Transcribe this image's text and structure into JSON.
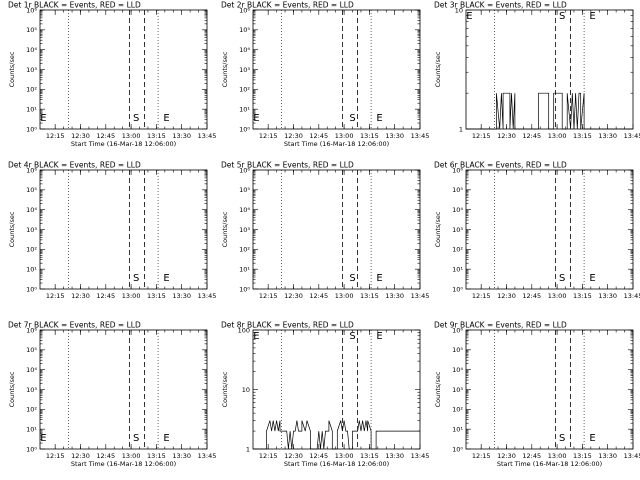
{
  "chart_data": [
    {
      "type": "line",
      "title": "Det 1r BLACK = Events, RED = LLD",
      "xlabel": "Start Time (16-Mar-18 12:06:00)",
      "ylabel": "Counts/sec",
      "yscale": "log",
      "ylim": [
        1,
        1000000
      ],
      "yticks": [
        1,
        10,
        100,
        1000,
        10000,
        100000,
        1000000
      ],
      "yticklabels": [
        "10⁰",
        "10¹",
        "10²",
        "10³",
        "10⁴",
        "10⁵",
        "10⁶"
      ],
      "xticklabels": [
        "12:15",
        "12:30",
        "12:45",
        "13:00",
        "13:15",
        "13:30",
        "13:45"
      ],
      "markers": [
        {
          "label": "E",
          "time": "12:08"
        },
        {
          "label": "S",
          "time": "13:03"
        },
        {
          "label": "E",
          "time": "13:21"
        }
      ],
      "series": []
    },
    {
      "type": "line",
      "title": "Det 2r BLACK = Events, RED = LLD",
      "xlabel": "Start Time (16-Mar-18 12:06:00)",
      "ylabel": "Counts/sec",
      "yscale": "log",
      "ylim": [
        1,
        1000000
      ],
      "yticks": [
        1,
        10,
        100,
        1000,
        10000,
        100000,
        1000000
      ],
      "yticklabels": [
        "10⁰",
        "10¹",
        "10²",
        "10³",
        "10⁴",
        "10⁵",
        "10⁶"
      ],
      "xticklabels": [
        "12:15",
        "12:30",
        "12:45",
        "13:00",
        "13:15",
        "13:30",
        "13:45"
      ],
      "markers": [
        {
          "label": "E",
          "time": "12:08"
        },
        {
          "label": "S",
          "time": "13:05"
        },
        {
          "label": "E",
          "time": "13:21"
        }
      ],
      "series": []
    },
    {
      "type": "line",
      "title": "Det 3r BLACK = Events, RED = LLD",
      "xlabel": "",
      "ylabel": "Counts/sec",
      "yscale": "log",
      "ylim": [
        1,
        10
      ],
      "yticks": [
        1,
        10
      ],
      "yticklabels": [
        "1",
        "10"
      ],
      "xticklabels": [
        "12:15",
        "12:30",
        "12:45",
        "13:00",
        "13:15",
        "13:30",
        "13:45"
      ],
      "markers": [
        {
          "label": "E",
          "time": "12:08"
        },
        {
          "label": "S",
          "time": "13:03"
        },
        {
          "label": "E",
          "time": "13:21"
        }
      ],
      "series": [
        {
          "x": [
            "12:06",
            "12:24",
            "12:24",
            "12:26",
            "12:27",
            "12:28",
            "12:28",
            "12:32",
            "12:32",
            "12:33",
            "12:34",
            "12:35",
            "12:35",
            "12:49",
            "12:49",
            "12:55",
            "12:55",
            "12:58",
            "12:58",
            "13:03",
            "13:03",
            "13:06",
            "13:06",
            "13:08",
            "13:09",
            "13:10",
            "13:11",
            "13:12",
            "13:13",
            "13:14",
            "13:14",
            "13:16",
            "13:16",
            "13:45"
          ],
          "y": [
            1,
            1,
            2,
            1,
            2,
            1,
            2,
            2,
            1,
            2,
            1,
            2,
            1,
            1,
            2,
            2,
            1,
            1,
            2,
            2,
            1,
            1,
            2,
            1,
            2,
            1,
            2,
            1,
            2,
            2,
            1,
            2,
            1,
            1
          ]
        }
      ]
    },
    {
      "type": "line",
      "title": "Det 4r BLACK = Events, RED = LLD",
      "xlabel": "",
      "ylabel": "Counts/sec",
      "yscale": "log",
      "ylim": [
        1,
        1000000
      ],
      "yticks": [
        1,
        10,
        100,
        1000,
        10000,
        100000,
        1000000
      ],
      "yticklabels": [
        "10⁰",
        "10¹",
        "10²",
        "10³",
        "10⁴",
        "10⁵",
        "10⁶"
      ],
      "xticklabels": [
        "12:15",
        "12:30",
        "12:45",
        "13:00",
        "13:15",
        "13:30",
        "13:45"
      ],
      "markers": [
        {
          "label": "S",
          "time": "13:03"
        },
        {
          "label": "E",
          "time": "13:21"
        }
      ],
      "series": []
    },
    {
      "type": "line",
      "title": "Det 5r BLACK = Events, RED = LLD",
      "xlabel": "",
      "ylabel": "Counts/sec",
      "yscale": "log",
      "ylim": [
        1,
        1000000
      ],
      "yticks": [
        1,
        10,
        100,
        1000,
        10000,
        100000,
        1000000
      ],
      "yticklabels": [
        "10⁰",
        "10¹",
        "10²",
        "10³",
        "10⁴",
        "10⁵",
        "10⁶"
      ],
      "xticklabels": [
        "12:15",
        "12:30",
        "12:45",
        "13:00",
        "13:15",
        "13:30",
        "13:45"
      ],
      "markers": [
        {
          "label": "S",
          "time": "13:05"
        },
        {
          "label": "E",
          "time": "13:21"
        }
      ],
      "series": []
    },
    {
      "type": "line",
      "title": "Det 6r BLACK = Events, RED = LLD",
      "xlabel": "",
      "ylabel": "Counts/sec",
      "yscale": "log",
      "ylim": [
        1,
        1000000
      ],
      "yticks": [
        1,
        10,
        100,
        1000,
        10000,
        100000,
        1000000
      ],
      "yticklabels": [
        "10⁰",
        "10¹",
        "10²",
        "10³",
        "10⁴",
        "10⁵",
        "10⁶"
      ],
      "xticklabels": [
        "12:15",
        "12:30",
        "12:45",
        "13:00",
        "13:15",
        "13:30",
        "13:45"
      ],
      "markers": [
        {
          "label": "S",
          "time": "13:03"
        },
        {
          "label": "E",
          "time": "13:21"
        }
      ],
      "series": []
    },
    {
      "type": "line",
      "title": "Det 7r BLACK = Events, RED = LLD",
      "xlabel": "Start Time (16-Mar-18 12:06:00)",
      "ylabel": "Counts/sec",
      "yscale": "log",
      "ylim": [
        1,
        1000000
      ],
      "yticks": [
        1,
        10,
        100,
        1000,
        10000,
        100000,
        1000000
      ],
      "yticklabels": [
        "10⁰",
        "10¹",
        "10²",
        "10³",
        "10⁴",
        "10⁵",
        "10⁶"
      ],
      "xticklabels": [
        "12:15",
        "12:30",
        "12:45",
        "13:00",
        "13:15",
        "13:30",
        "13:45"
      ],
      "markers": [
        {
          "label": "E",
          "time": "12:08"
        },
        {
          "label": "S",
          "time": "13:03"
        },
        {
          "label": "E",
          "time": "13:21"
        }
      ],
      "series": []
    },
    {
      "type": "line",
      "title": "Det 8r BLACK = Events, RED = LLD",
      "xlabel": "Start Time (16-Mar-18 12:06:00)",
      "ylabel": "Counts/sec",
      "yscale": "log",
      "ylim": [
        1,
        100
      ],
      "yticks": [
        1,
        10,
        100
      ],
      "yticklabels": [
        "1",
        "10",
        "100"
      ],
      "xticklabels": [
        "12:15",
        "12:30",
        "12:45",
        "13:00",
        "13:15",
        "13:30",
        "13:45"
      ],
      "markers": [
        {
          "label": "E",
          "time": "12:08"
        },
        {
          "label": "S",
          "time": "13:05"
        },
        {
          "label": "E",
          "time": "13:21"
        }
      ],
      "series": [
        {
          "x": [
            "12:06",
            "12:14",
            "12:14",
            "12:16",
            "12:17",
            "12:18",
            "12:19",
            "12:20",
            "12:21",
            "12:22",
            "12:22",
            "12:26",
            "12:27",
            "12:28",
            "12:29",
            "12:30",
            "12:31",
            "12:32",
            "12:33",
            "12:35",
            "12:35",
            "12:37",
            "12:38",
            "12:40",
            "12:40",
            "12:44",
            "12:45",
            "12:46",
            "12:47",
            "12:48",
            "12:49",
            "12:51",
            "12:51",
            "12:53",
            "12:53",
            "12:56",
            "12:56",
            "12:58",
            "12:59",
            "13:00",
            "13:01",
            "13:02",
            "13:03",
            "13:05",
            "13:05",
            "13:08",
            "13:09",
            "13:10",
            "13:11",
            "13:12",
            "13:13",
            "13:14",
            "13:14",
            "13:16",
            "13:16",
            "13:19",
            "13:19",
            "13:45"
          ],
          "y": [
            1,
            1,
            2,
            3,
            2,
            3,
            2,
            3,
            2,
            3,
            2,
            2,
            1,
            2,
            1,
            2,
            2,
            3,
            2,
            2,
            3,
            2,
            3,
            2,
            1,
            1,
            2,
            1,
            2,
            1,
            2,
            2,
            3,
            2,
            1,
            1,
            2,
            3,
            2,
            3,
            2,
            2,
            1,
            1,
            2,
            2,
            3,
            2,
            3,
            2,
            3,
            2,
            3,
            2,
            1,
            1,
            2,
            2
          ]
        }
      ]
    },
    {
      "type": "line",
      "title": "Det 9r BLACK = Events, RED = LLD",
      "xlabel": "Start Time (16-Mar-18 12:06:00)",
      "ylabel": "Counts/sec",
      "yscale": "log",
      "ylim": [
        1,
        1000000
      ],
      "yticks": [
        1,
        10,
        100,
        1000,
        10000,
        100000,
        1000000
      ],
      "yticklabels": [
        "10⁰",
        "10¹",
        "10²",
        "10³",
        "10⁴",
        "10⁵",
        "10⁶"
      ],
      "xticklabels": [
        "12:15",
        "12:30",
        "12:45",
        "13:00",
        "13:15",
        "13:30",
        "13:45"
      ],
      "markers": [
        {
          "label": "S",
          "time": "13:03"
        },
        {
          "label": "E",
          "time": "13:21"
        }
      ],
      "series": []
    }
  ],
  "time_range": {
    "start": "12:06",
    "end": "13:45"
  },
  "dashed_times": [
    "12:59",
    "13:08"
  ],
  "dotted_times": [
    "12:23",
    "13:16"
  ]
}
